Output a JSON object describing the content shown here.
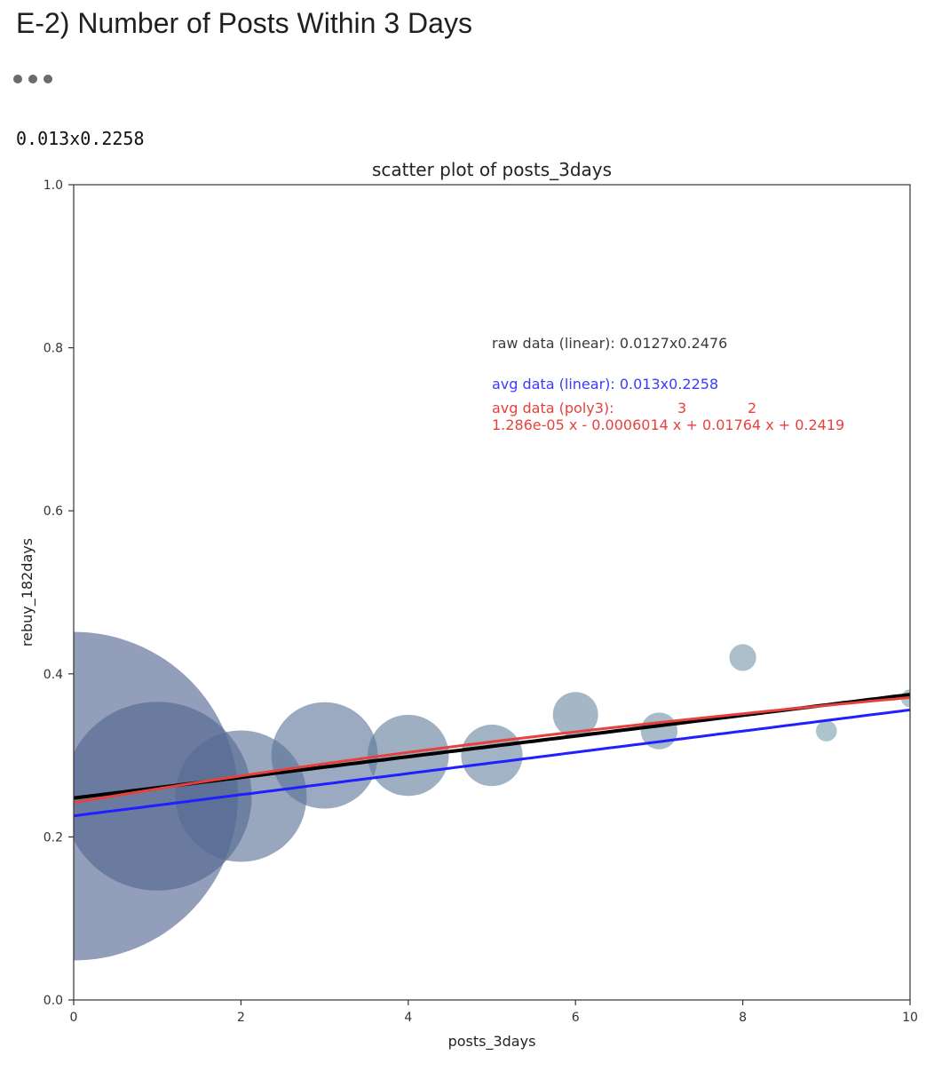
{
  "cell": {
    "heading": "E-2) Number of Posts Within 3 Days",
    "collapsed_icon": "ellipsis-icon",
    "output_text": "0.013x0.2258"
  },
  "chart_data": {
    "type": "scatter",
    "title": "scatter plot of posts_3days",
    "xlabel": "posts_3days",
    "ylabel": "rebuy_182days",
    "xlim": [
      0,
      10
    ],
    "ylim": [
      0.0,
      1.0
    ],
    "xticks": [
      0,
      2,
      4,
      6,
      8,
      10
    ],
    "yticks": [
      0.0,
      0.2,
      0.4,
      0.6,
      0.8,
      1.0
    ],
    "ytick_labels": [
      "0.0",
      "0.2",
      "0.4",
      "0.6",
      "0.8",
      "1.0"
    ],
    "grid": false,
    "points": [
      {
        "x": 0,
        "y": 0.25,
        "size_relative": 1.0
      },
      {
        "x": 1,
        "y": 0.25,
        "size_relative": 0.33
      },
      {
        "x": 2,
        "y": 0.25,
        "size_relative": 0.16
      },
      {
        "x": 3,
        "y": 0.3,
        "size_relative": 0.105
      },
      {
        "x": 4,
        "y": 0.3,
        "size_relative": 0.061
      },
      {
        "x": 5,
        "y": 0.3,
        "size_relative": 0.035
      },
      {
        "x": 6,
        "y": 0.35,
        "size_relative": 0.019
      },
      {
        "x": 7,
        "y": 0.33,
        "size_relative": 0.0125
      },
      {
        "x": 8,
        "y": 0.42,
        "size_relative": 0.0067
      },
      {
        "x": 9,
        "y": 0.33,
        "size_relative": 0.0041
      },
      {
        "x": 10,
        "y": 0.37,
        "size_relative": 0.003
      }
    ],
    "fit_lines": [
      {
        "kind": "linear",
        "slope": 0.0127,
        "intercept": 0.2476,
        "color": "#000000"
      },
      {
        "kind": "linear",
        "slope": 0.013,
        "intercept": 0.2258,
        "color": "#1f1fff"
      },
      {
        "kind": "poly3",
        "coefficients": [
          1.286e-05,
          -0.0006014,
          0.01764,
          0.2419
        ],
        "color": "#e8413c"
      }
    ],
    "annotations": {
      "raw_linear": "raw data (linear): 0.0127x0.2476",
      "avg_linear": "avg data (linear): 0.013x0.2258",
      "avg_poly3_label": "avg data (poly3):",
      "avg_poly3_exp3": "3",
      "avg_poly3_exp2": "2",
      "avg_poly3_formula": "1.286e-05 x - 0.0006014 x + 0.01764 x + 0.2419"
    },
    "colors": {
      "marker_base": "#4b5d8c",
      "marker_tail": "#7aa3ad",
      "raw_line": "#000000",
      "avg_linear_line": "#1f1fff",
      "poly3_line": "#e8413c",
      "raw_text": "#3a3a3a",
      "avg_text": "#3b3bff",
      "poly_text": "#e8413c"
    }
  }
}
